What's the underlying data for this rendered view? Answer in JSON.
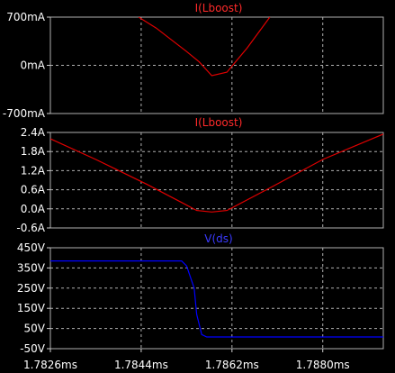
{
  "chart_data": [
    {
      "type": "line",
      "title": "I(Lboost)",
      "title_color": "#ff2a2a",
      "series_color": "#e00000",
      "xlim": [
        1.7826,
        1.7892
      ],
      "ylim": [
        -700,
        700
      ],
      "yticks": [
        700,
        0,
        -700
      ],
      "ytick_labels": [
        "700mA",
        "0mA",
        "-700mA"
      ],
      "series": [
        {
          "x": [
            1.78435,
            1.7847,
            1.785,
            1.7853,
            1.78555,
            1.7858,
            1.7861,
            1.7865,
            1.78695
          ],
          "y": [
            700,
            540,
            370,
            200,
            50,
            -150,
            -100,
            250,
            700
          ]
        }
      ]
    },
    {
      "type": "line",
      "title": "I(Lboost)",
      "title_color": "#ff2a2a",
      "series_color": "#e00000",
      "xlim": [
        1.7826,
        1.7892
      ],
      "ylim": [
        -0.6,
        2.4
      ],
      "yticks": [
        2.4,
        1.8,
        1.2,
        0.6,
        0.0,
        -0.6
      ],
      "ytick_labels": [
        "2.4A",
        "1.8A",
        "1.2A",
        "0.6A",
        "0.0A",
        "-0.6A"
      ],
      "series": [
        {
          "x": [
            1.7826,
            1.7835,
            1.7845,
            1.7852,
            1.7855,
            1.7858,
            1.7861,
            1.787,
            1.788,
            1.7892
          ],
          "y": [
            2.2,
            1.55,
            0.78,
            0.2,
            -0.05,
            -0.1,
            -0.05,
            0.7,
            1.55,
            2.35
          ]
        }
      ]
    },
    {
      "type": "line",
      "title": "V(ds)",
      "title_color": "#3a3aff",
      "series_color": "#0000ff",
      "xlim": [
        1.7826,
        1.7892
      ],
      "ylim": [
        -50,
        450
      ],
      "yticks": [
        450,
        350,
        250,
        150,
        50,
        -50
      ],
      "ytick_labels": [
        "450V",
        "350V",
        "250V",
        "150V",
        "50V",
        "-50V"
      ],
      "xticks": [
        1.7826,
        1.7844,
        1.7862,
        1.788
      ],
      "xtick_labels": [
        "1.7826ms",
        "1.7844ms",
        "1.7862ms",
        "1.7880ms"
      ],
      "series": [
        {
          "x": [
            1.7826,
            1.7852,
            1.7853,
            1.78545,
            1.7855,
            1.7856,
            1.7857,
            1.7892
          ],
          "y": [
            385,
            385,
            360,
            250,
            120,
            20,
            8,
            8
          ]
        }
      ]
    }
  ]
}
